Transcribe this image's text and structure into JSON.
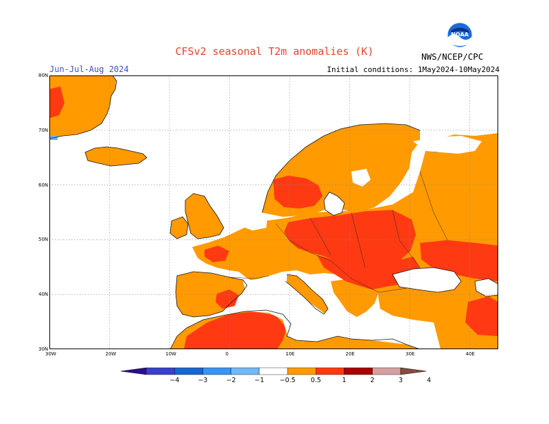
{
  "header": {
    "title": "CFSv2 seasonal T2m anomalies (K)",
    "season": "Jun-Jul-Aug 2024",
    "initial_conditions": "Initial conditions: 1May2024-10May2024",
    "org": "NWS/NCEP/CPC",
    "logo_text": "NOAA"
  },
  "map": {
    "lat_labels": [
      "80N",
      "70N",
      "60N",
      "50N",
      "40N",
      "30N"
    ],
    "lon_labels": [
      "30W",
      "20W",
      "10W",
      "0",
      "10E",
      "20E",
      "30E",
      "40E"
    ],
    "colors": {
      "ocean": "#ffffff",
      "anom_05_1": "#ff9a00",
      "anom_1_2": "#ff4a1a",
      "anom_2_3": "#a30000",
      "anom_neg_05_1": "#6fb0f0",
      "anom_neg_1_2": "#2f78d0",
      "grid": "#888888",
      "coast": "#111111"
    }
  },
  "colorbar": {
    "labels": [
      "−4",
      "−3",
      "−2",
      "−1",
      "−0.5",
      "0.5",
      "1",
      "2",
      "3",
      "4"
    ],
    "colors": [
      "#2c0f8f",
      "#3a40c8",
      "#1a66d0",
      "#3a94f0",
      "#72b8f5",
      "#ffffff",
      "#ff9a00",
      "#ff3a10",
      "#a80000",
      "#d4a0a0",
      "#8a4a40"
    ]
  }
}
